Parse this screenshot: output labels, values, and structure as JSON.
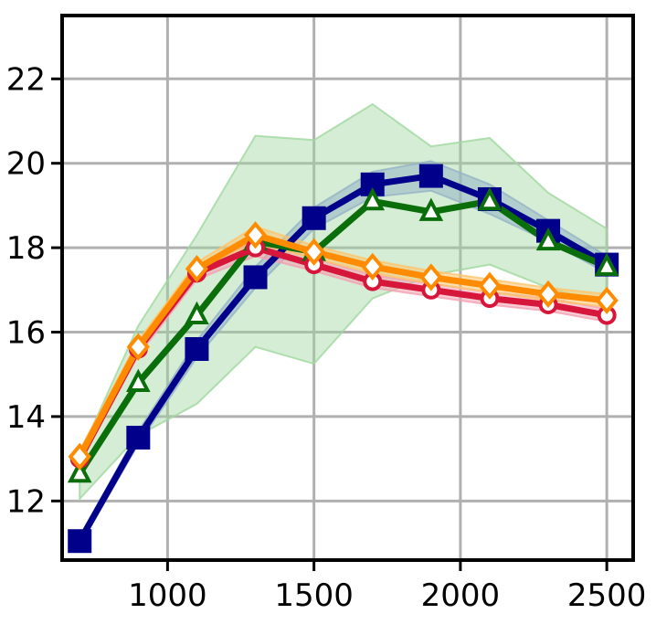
{
  "chart_data": {
    "type": "line",
    "title": "",
    "xlabel": "",
    "ylabel": "",
    "xlim": [
      640,
      2590
    ],
    "ylim": [
      10.6,
      23.5
    ],
    "grid": true,
    "x": [
      700,
      900,
      1100,
      1300,
      1500,
      1700,
      1900,
      2100,
      2300,
      2500
    ],
    "x_ticks": [
      1000,
      1500,
      2000,
      2500
    ],
    "x_tick_labels": [
      "1000",
      "1500",
      "2000",
      "2500"
    ],
    "y_ticks": [
      12,
      14,
      16,
      18,
      20,
      22
    ],
    "y_tick_labels": [
      "12",
      "14",
      "16",
      "18",
      "20",
      "22"
    ],
    "series": [
      {
        "color": "#d6163a",
        "band_color": "#f4a0b0",
        "marker": "circle",
        "values": [
          13.0,
          15.6,
          17.4,
          18.0,
          17.6,
          17.2,
          17.0,
          16.8,
          16.65,
          16.4
        ],
        "band_lower": [
          12.9,
          15.45,
          17.25,
          17.8,
          17.45,
          17.05,
          16.85,
          16.65,
          16.5,
          16.25
        ],
        "band_upper": [
          13.1,
          15.75,
          17.55,
          18.15,
          17.75,
          17.35,
          17.15,
          16.95,
          16.8,
          16.55
        ]
      },
      {
        "color": "#ff8c00",
        "band_color": "#ffc46b",
        "marker": "diamond",
        "values": [
          13.05,
          15.65,
          17.5,
          18.3,
          17.9,
          17.55,
          17.3,
          17.1,
          16.9,
          16.75
        ],
        "band_lower": [
          12.9,
          15.5,
          17.35,
          18.1,
          17.75,
          17.4,
          17.15,
          16.95,
          16.75,
          16.6
        ],
        "band_upper": [
          13.2,
          15.8,
          17.65,
          18.5,
          18.05,
          17.7,
          17.45,
          17.25,
          17.05,
          16.9
        ]
      },
      {
        "color": "#0a6e0a",
        "band_color": "#9fd89f",
        "marker": "triangle",
        "values": [
          12.65,
          14.8,
          16.4,
          18.15,
          17.9,
          19.1,
          18.85,
          19.1,
          18.15,
          17.55
        ],
        "band_lower": [
          12.05,
          13.55,
          14.3,
          15.65,
          15.25,
          16.8,
          17.35,
          17.6,
          17.05,
          16.65
        ],
        "band_upper": [
          13.1,
          16.15,
          18.3,
          20.65,
          20.55,
          21.4,
          20.4,
          20.6,
          19.3,
          18.45
        ]
      },
      {
        "color": "#00008b",
        "band_color": "#8c96e6",
        "marker": "square",
        "values": [
          11.05,
          13.5,
          15.6,
          17.3,
          18.7,
          19.5,
          19.7,
          19.15,
          18.4,
          17.6
        ],
        "band_lower": [
          10.95,
          13.35,
          15.4,
          17.05,
          18.45,
          19.2,
          19.35,
          18.8,
          18.15,
          17.4
        ],
        "band_upper": [
          11.15,
          13.65,
          15.8,
          17.55,
          18.95,
          19.8,
          20.05,
          19.5,
          18.65,
          17.8
        ]
      }
    ]
  }
}
